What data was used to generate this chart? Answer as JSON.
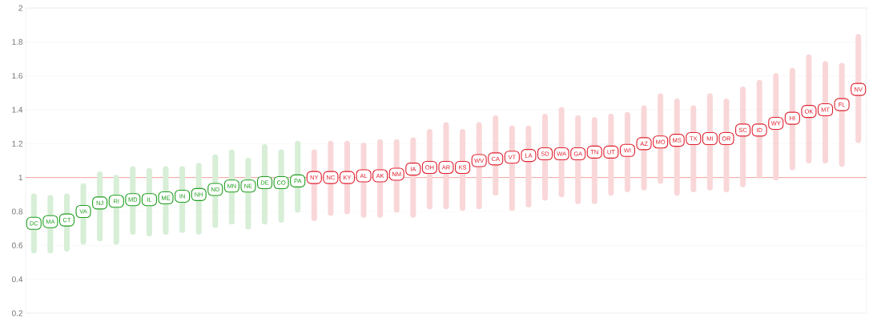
{
  "chart_data": {
    "type": "scatter",
    "categories": [
      "DC",
      "MA",
      "CT",
      "VA",
      "NJ",
      "RI",
      "MD",
      "IL",
      "ME",
      "IN",
      "NH",
      "ND",
      "MN",
      "NE",
      "DE",
      "CO",
      "PA",
      "NY",
      "NC",
      "KY",
      "AL",
      "AK",
      "NM",
      "IA",
      "OH",
      "AR",
      "KS",
      "WV",
      "CA",
      "VT",
      "LA",
      "SD",
      "WA",
      "GA",
      "TN",
      "UT",
      "WI",
      "AZ",
      "MO",
      "MS",
      "TX",
      "MI",
      "OR",
      "SC",
      "ID",
      "WY",
      "HI",
      "OK",
      "MT",
      "FL",
      "NV"
    ],
    "values": [
      0.73,
      0.74,
      0.75,
      0.8,
      0.85,
      0.86,
      0.87,
      0.87,
      0.88,
      0.89,
      0.9,
      0.93,
      0.95,
      0.95,
      0.97,
      0.97,
      0.98,
      1.0,
      1.0,
      1.0,
      1.01,
      1.01,
      1.02,
      1.05,
      1.06,
      1.06,
      1.06,
      1.1,
      1.11,
      1.12,
      1.13,
      1.14,
      1.14,
      1.14,
      1.15,
      1.15,
      1.16,
      1.2,
      1.21,
      1.22,
      1.23,
      1.23,
      1.23,
      1.28,
      1.28,
      1.32,
      1.35,
      1.39,
      1.4,
      1.43,
      1.52
    ],
    "errors": [
      [
        0.57,
        0.89
      ],
      [
        0.57,
        0.88
      ],
      [
        0.58,
        0.89
      ],
      [
        0.62,
        0.95
      ],
      [
        0.64,
        1.02
      ],
      [
        0.62,
        1.0
      ],
      [
        0.68,
        1.05
      ],
      [
        0.67,
        1.04
      ],
      [
        0.68,
        1.05
      ],
      [
        0.69,
        1.05
      ],
      [
        0.68,
        1.07
      ],
      [
        0.72,
        1.12
      ],
      [
        0.74,
        1.15
      ],
      [
        0.71,
        1.1
      ],
      [
        0.74,
        1.18
      ],
      [
        0.75,
        1.15
      ],
      [
        0.81,
        1.2
      ],
      [
        0.76,
        1.15
      ],
      [
        0.79,
        1.2
      ],
      [
        0.8,
        1.2
      ],
      [
        0.78,
        1.19
      ],
      [
        0.78,
        1.21
      ],
      [
        0.81,
        1.21
      ],
      [
        0.78,
        1.22
      ],
      [
        0.83,
        1.27
      ],
      [
        0.83,
        1.31
      ],
      [
        0.82,
        1.27
      ],
      [
        0.83,
        1.31
      ],
      [
        0.91,
        1.35
      ],
      [
        0.82,
        1.29
      ],
      [
        0.84,
        1.29
      ],
      [
        0.88,
        1.36
      ],
      [
        0.9,
        1.4
      ],
      [
        0.86,
        1.35
      ],
      [
        0.86,
        1.34
      ],
      [
        0.91,
        1.36
      ],
      [
        0.93,
        1.37
      ],
      [
        0.94,
        1.41
      ],
      [
        0.98,
        1.48
      ],
      [
        0.91,
        1.45
      ],
      [
        0.93,
        1.41
      ],
      [
        0.94,
        1.48
      ],
      [
        0.93,
        1.45
      ],
      [
        0.96,
        1.52
      ],
      [
        1.01,
        1.56
      ],
      [
        1.0,
        1.6
      ],
      [
        1.06,
        1.63
      ],
      [
        1.1,
        1.71
      ],
      [
        1.1,
        1.67
      ],
      [
        1.08,
        1.66
      ],
      [
        1.22,
        1.83
      ]
    ],
    "colors": [
      "#1f9e1f",
      "#1f9e1f",
      "#1f9e1f",
      "#1f9e1f",
      "#1f9e1f",
      "#1f9e1f",
      "#1f9e1f",
      "#1f9e1f",
      "#1f9e1f",
      "#1f9e1f",
      "#1f9e1f",
      "#1f9e1f",
      "#1f9e1f",
      "#1f9e1f",
      "#1f9e1f",
      "#1f9e1f",
      "#1f9e1f",
      "#e0202e",
      "#e0202e",
      "#e0202e",
      "#e0202e",
      "#e0202e",
      "#e0202e",
      "#e0202e",
      "#e0202e",
      "#e0202e",
      "#e0202e",
      "#e0202e",
      "#e0202e",
      "#e0202e",
      "#e0202e",
      "#e0202e",
      "#e0202e",
      "#e0202e",
      "#e0202e",
      "#e0202e",
      "#e0202e",
      "#e0202e",
      "#e0202e",
      "#e0202e",
      "#e0202e",
      "#e0202e",
      "#e0202e",
      "#e0202e",
      "#e0202e",
      "#e0202e",
      "#e0202e",
      "#e0202e",
      "#e0202e",
      "#e0202e",
      "#e0202e"
    ],
    "ylim": [
      0.2,
      2
    ],
    "yticks": [
      0.2,
      0.4,
      0.6,
      0.8,
      1,
      1.2,
      1.4,
      1.6,
      1.8,
      2
    ],
    "grid": "y",
    "tick_labels": "y",
    "ref_lines": [
      {
        "axis": "y",
        "value": 1,
        "color": "#f28a8a"
      }
    ]
  }
}
